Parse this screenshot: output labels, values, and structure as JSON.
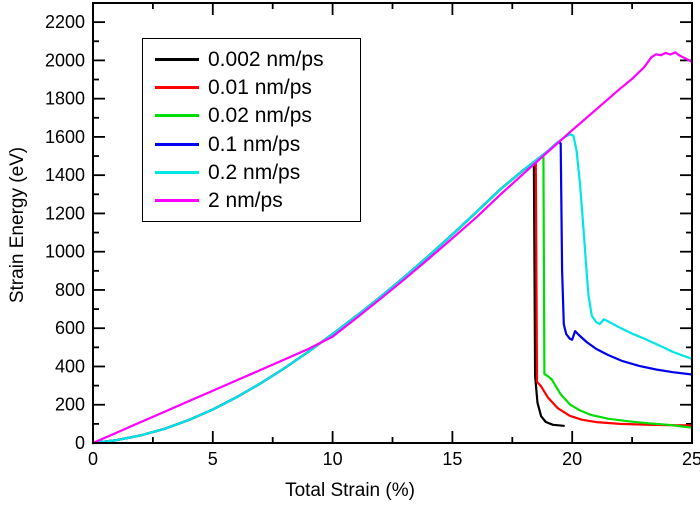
{
  "figure": {
    "background": "#ffffff",
    "axis_color": "#000000",
    "xlabel": "Total Strain (%)",
    "ylabel": "Strain Energy (eV)"
  },
  "chart_data": {
    "type": "line",
    "title": "",
    "xlabel": "Total Strain (%)",
    "ylabel": "Strain Energy (eV)",
    "xlim": [
      0,
      25
    ],
    "ylim": [
      0,
      2300
    ],
    "x_major_ticks": [
      0,
      5,
      10,
      15,
      20,
      25
    ],
    "x_minor_step": 2.5,
    "y_major_ticks": [
      0,
      200,
      400,
      600,
      800,
      1000,
      1200,
      1400,
      1600,
      1800,
      2000,
      2200
    ],
    "y_minor_step": 100,
    "grid": false,
    "legend_position": "upper-left",
    "tick_style": "inward-all-sides",
    "series": [
      {
        "name": "0.002 nm/ps",
        "color": "#000000",
        "points": [
          [
            0,
            0
          ],
          [
            1,
            15
          ],
          [
            2,
            40
          ],
          [
            3,
            75
          ],
          [
            4,
            120
          ],
          [
            5,
            175
          ],
          [
            6,
            240
          ],
          [
            7,
            312
          ],
          [
            8,
            392
          ],
          [
            9,
            478
          ],
          [
            10,
            570
          ],
          [
            11,
            665
          ],
          [
            12,
            764
          ],
          [
            13,
            868
          ],
          [
            14,
            977
          ],
          [
            15,
            1090
          ],
          [
            16,
            1207
          ],
          [
            17,
            1326
          ],
          [
            18,
            1430
          ],
          [
            18.4,
            1460
          ],
          [
            18.45,
            350
          ],
          [
            18.55,
            210
          ],
          [
            18.7,
            140
          ],
          [
            18.9,
            110
          ],
          [
            19.2,
            95
          ],
          [
            19.65,
            90
          ]
        ]
      },
      {
        "name": "0.01 nm/ps",
        "color": "#ff0000",
        "points": [
          [
            0,
            0
          ],
          [
            1,
            15
          ],
          [
            2,
            40
          ],
          [
            3,
            75
          ],
          [
            4,
            120
          ],
          [
            5,
            175
          ],
          [
            6,
            240
          ],
          [
            7,
            312
          ],
          [
            8,
            392
          ],
          [
            9,
            478
          ],
          [
            10,
            570
          ],
          [
            11,
            665
          ],
          [
            12,
            764
          ],
          [
            13,
            868
          ],
          [
            14,
            977
          ],
          [
            15,
            1090
          ],
          [
            16,
            1207
          ],
          [
            17,
            1326
          ],
          [
            18,
            1430
          ],
          [
            18.48,
            1466
          ],
          [
            18.53,
            320
          ],
          [
            18.7,
            296
          ],
          [
            19,
            236
          ],
          [
            19.4,
            182
          ],
          [
            19.9,
            142
          ],
          [
            20.4,
            122
          ],
          [
            21,
            109
          ],
          [
            22,
            100
          ],
          [
            23,
            96
          ],
          [
            24,
            93
          ],
          [
            25,
            92
          ]
        ]
      },
      {
        "name": "0.02 nm/ps",
        "color": "#00dd00",
        "points": [
          [
            0,
            0
          ],
          [
            1,
            15
          ],
          [
            2,
            40
          ],
          [
            3,
            75
          ],
          [
            4,
            120
          ],
          [
            5,
            175
          ],
          [
            6,
            240
          ],
          [
            7,
            312
          ],
          [
            8,
            392
          ],
          [
            9,
            478
          ],
          [
            10,
            570
          ],
          [
            11,
            665
          ],
          [
            12,
            764
          ],
          [
            13,
            868
          ],
          [
            14,
            977
          ],
          [
            15,
            1090
          ],
          [
            16,
            1207
          ],
          [
            17,
            1326
          ],
          [
            18,
            1430
          ],
          [
            18.8,
            1505
          ],
          [
            18.84,
            360
          ],
          [
            19.0,
            348
          ],
          [
            19.15,
            332
          ],
          [
            19.5,
            258
          ],
          [
            19.9,
            202
          ],
          [
            20.3,
            172
          ],
          [
            20.8,
            146
          ],
          [
            21.5,
            127
          ],
          [
            22.3,
            114
          ],
          [
            23.2,
            103
          ],
          [
            24,
            95
          ],
          [
            24.6,
            86
          ],
          [
            25,
            80
          ]
        ]
      },
      {
        "name": "0.1 nm/ps",
        "color": "#0000ee",
        "points": [
          [
            0,
            0
          ],
          [
            1,
            15
          ],
          [
            2,
            40
          ],
          [
            3,
            75
          ],
          [
            4,
            120
          ],
          [
            5,
            175
          ],
          [
            6,
            240
          ],
          [
            7,
            312
          ],
          [
            8,
            392
          ],
          [
            9,
            478
          ],
          [
            10,
            570
          ],
          [
            11,
            665
          ],
          [
            12,
            764
          ],
          [
            13,
            868
          ],
          [
            14,
            977
          ],
          [
            15,
            1090
          ],
          [
            16,
            1207
          ],
          [
            17,
            1326
          ],
          [
            18,
            1430
          ],
          [
            19.0,
            1528
          ],
          [
            19.3,
            1562
          ],
          [
            19.45,
            1575
          ],
          [
            19.52,
            1565
          ],
          [
            19.58,
            900
          ],
          [
            19.65,
            620
          ],
          [
            19.75,
            570
          ],
          [
            19.9,
            545
          ],
          [
            20.0,
            540
          ],
          [
            20.12,
            585
          ],
          [
            20.3,
            562
          ],
          [
            20.6,
            528
          ],
          [
            21.0,
            492
          ],
          [
            21.5,
            460
          ],
          [
            22.1,
            428
          ],
          [
            22.8,
            403
          ],
          [
            23.5,
            384
          ],
          [
            24.2,
            370
          ],
          [
            25,
            358
          ]
        ]
      },
      {
        "name": "0.2 nm/ps",
        "color": "#00e5e5",
        "points": [
          [
            0,
            0
          ],
          [
            1,
            15
          ],
          [
            2,
            40
          ],
          [
            3,
            75
          ],
          [
            4,
            120
          ],
          [
            5,
            175
          ],
          [
            6,
            240
          ],
          [
            7,
            312
          ],
          [
            8,
            392
          ],
          [
            9,
            478
          ],
          [
            10,
            570
          ],
          [
            11,
            665
          ],
          [
            12,
            764
          ],
          [
            13,
            868
          ],
          [
            14,
            977
          ],
          [
            15,
            1090
          ],
          [
            16,
            1207
          ],
          [
            17,
            1326
          ],
          [
            18,
            1430
          ],
          [
            19.0,
            1528
          ],
          [
            19.45,
            1578
          ],
          [
            19.7,
            1600
          ],
          [
            19.9,
            1613
          ],
          [
            20.05,
            1607
          ],
          [
            20.18,
            1530
          ],
          [
            20.32,
            1360
          ],
          [
            20.46,
            1140
          ],
          [
            20.58,
            930
          ],
          [
            20.68,
            770
          ],
          [
            20.82,
            665
          ],
          [
            21.0,
            632
          ],
          [
            21.15,
            622
          ],
          [
            21.32,
            646
          ],
          [
            21.5,
            636
          ],
          [
            22.0,
            602
          ],
          [
            22.5,
            572
          ],
          [
            23.0,
            546
          ],
          [
            23.6,
            512
          ],
          [
            24.2,
            476
          ],
          [
            24.7,
            453
          ],
          [
            25,
            440
          ]
        ]
      },
      {
        "name": "2 nm/ps",
        "color": "#ff00ff",
        "points": [
          [
            0,
            0
          ],
          [
            1,
            55
          ],
          [
            2,
            110
          ],
          [
            3,
            164
          ],
          [
            4,
            219
          ],
          [
            5,
            273
          ],
          [
            6,
            328
          ],
          [
            7,
            382
          ],
          [
            8,
            437
          ],
          [
            9,
            492
          ],
          [
            10,
            556
          ],
          [
            11,
            654
          ],
          [
            12,
            754
          ],
          [
            13,
            856
          ],
          [
            14,
            962
          ],
          [
            15,
            1070
          ],
          [
            16,
            1180
          ],
          [
            17,
            1298
          ],
          [
            18,
            1412
          ],
          [
            19,
            1524
          ],
          [
            20,
            1635
          ],
          [
            21,
            1744
          ],
          [
            22,
            1852
          ],
          [
            22.5,
            1904
          ],
          [
            23,
            1964
          ],
          [
            23.3,
            2016
          ],
          [
            23.5,
            2032
          ],
          [
            23.7,
            2027
          ],
          [
            23.9,
            2039
          ],
          [
            24.1,
            2031
          ],
          [
            24.3,
            2042
          ],
          [
            24.5,
            2024
          ],
          [
            24.7,
            2012
          ],
          [
            25,
            1992
          ]
        ]
      }
    ]
  }
}
